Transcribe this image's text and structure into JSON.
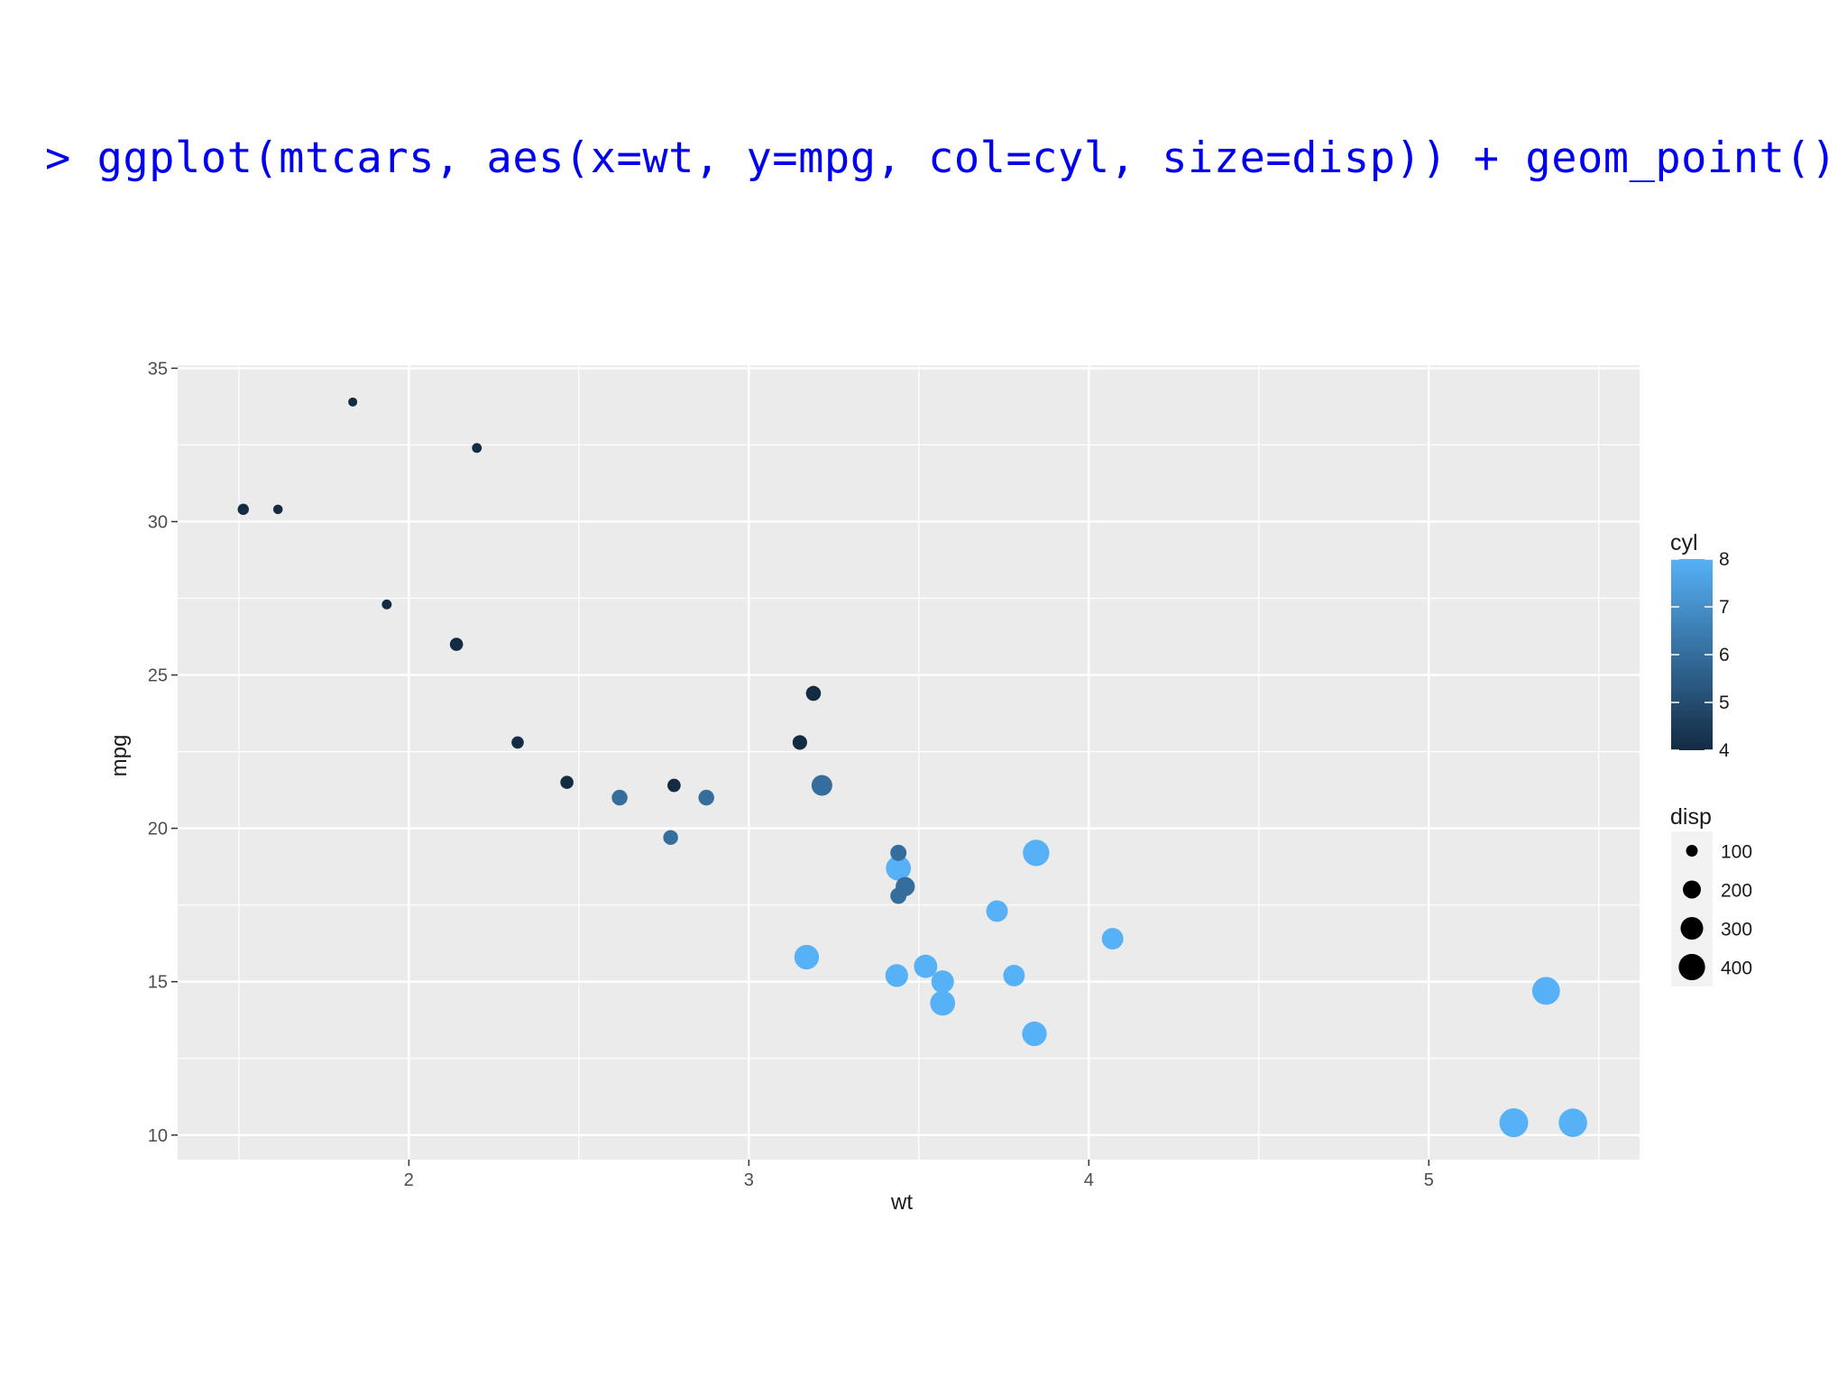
{
  "code": {
    "text": "> ggplot(mtcars, aes(x=wt, y=mpg, col=cyl, size=disp)) + geom_point()"
  },
  "colors": {
    "panel_bg": "#ebebeb",
    "grid": "#ffffff",
    "low": "#132b43",
    "high": "#56b1f7",
    "code": "#0000ee"
  },
  "chart_data": {
    "type": "scatter",
    "xlabel": "wt",
    "ylabel": "mpg",
    "xlim": [
      1.32,
      5.62
    ],
    "ylim": [
      9.2,
      35.1
    ],
    "xticks": [
      2,
      3,
      4,
      5
    ],
    "yticks": [
      10,
      15,
      20,
      25,
      30,
      35
    ],
    "grid": true,
    "points": [
      {
        "x": 2.62,
        "y": 21.0,
        "cyl": 6,
        "disp": 160
      },
      {
        "x": 2.875,
        "y": 21.0,
        "cyl": 6,
        "disp": 160
      },
      {
        "x": 2.32,
        "y": 22.8,
        "cyl": 4,
        "disp": 108
      },
      {
        "x": 3.215,
        "y": 21.4,
        "cyl": 6,
        "disp": 258
      },
      {
        "x": 3.44,
        "y": 18.7,
        "cyl": 8,
        "disp": 360
      },
      {
        "x": 3.46,
        "y": 18.1,
        "cyl": 6,
        "disp": 225
      },
      {
        "x": 3.57,
        "y": 14.3,
        "cyl": 8,
        "disp": 360
      },
      {
        "x": 3.19,
        "y": 24.4,
        "cyl": 4,
        "disp": 146.7
      },
      {
        "x": 3.15,
        "y": 22.8,
        "cyl": 4,
        "disp": 140.8
      },
      {
        "x": 3.44,
        "y": 19.2,
        "cyl": 6,
        "disp": 167.6
      },
      {
        "x": 3.44,
        "y": 17.8,
        "cyl": 6,
        "disp": 167.6
      },
      {
        "x": 4.07,
        "y": 16.4,
        "cyl": 8,
        "disp": 275.8
      },
      {
        "x": 3.73,
        "y": 17.3,
        "cyl": 8,
        "disp": 275.8
      },
      {
        "x": 3.78,
        "y": 15.2,
        "cyl": 8,
        "disp": 275.8
      },
      {
        "x": 5.25,
        "y": 10.4,
        "cyl": 8,
        "disp": 472
      },
      {
        "x": 5.424,
        "y": 10.4,
        "cyl": 8,
        "disp": 460
      },
      {
        "x": 5.345,
        "y": 14.7,
        "cyl": 8,
        "disp": 440
      },
      {
        "x": 2.2,
        "y": 32.4,
        "cyl": 4,
        "disp": 78.7
      },
      {
        "x": 1.615,
        "y": 30.4,
        "cyl": 4,
        "disp": 75.7
      },
      {
        "x": 1.835,
        "y": 33.9,
        "cyl": 4,
        "disp": 71.1
      },
      {
        "x": 2.465,
        "y": 21.5,
        "cyl": 4,
        "disp": 120.1
      },
      {
        "x": 3.52,
        "y": 15.5,
        "cyl": 8,
        "disp": 318
      },
      {
        "x": 3.435,
        "y": 15.2,
        "cyl": 8,
        "disp": 304
      },
      {
        "x": 3.84,
        "y": 13.3,
        "cyl": 8,
        "disp": 350
      },
      {
        "x": 3.845,
        "y": 19.2,
        "cyl": 8,
        "disp": 400
      },
      {
        "x": 1.935,
        "y": 27.3,
        "cyl": 4,
        "disp": 79
      },
      {
        "x": 2.14,
        "y": 26.0,
        "cyl": 4,
        "disp": 120.3
      },
      {
        "x": 1.513,
        "y": 30.4,
        "cyl": 4,
        "disp": 95.1
      },
      {
        "x": 3.17,
        "y": 15.8,
        "cyl": 8,
        "disp": 351
      },
      {
        "x": 2.77,
        "y": 19.7,
        "cyl": 6,
        "disp": 145
      },
      {
        "x": 3.57,
        "y": 15.0,
        "cyl": 8,
        "disp": 301
      },
      {
        "x": 2.78,
        "y": 21.4,
        "cyl": 4,
        "disp": 121
      }
    ],
    "legend": {
      "placement": "right",
      "color": {
        "title": "cyl",
        "range": [
          4,
          8
        ],
        "breaks": [
          "4",
          "5",
          "6",
          "7",
          "8"
        ]
      },
      "size": {
        "title": "disp",
        "range": [
          71.1,
          472
        ],
        "breaks": [
          100,
          200,
          300,
          400
        ],
        "labels": [
          "100",
          "200",
          "300",
          "400"
        ]
      }
    }
  }
}
